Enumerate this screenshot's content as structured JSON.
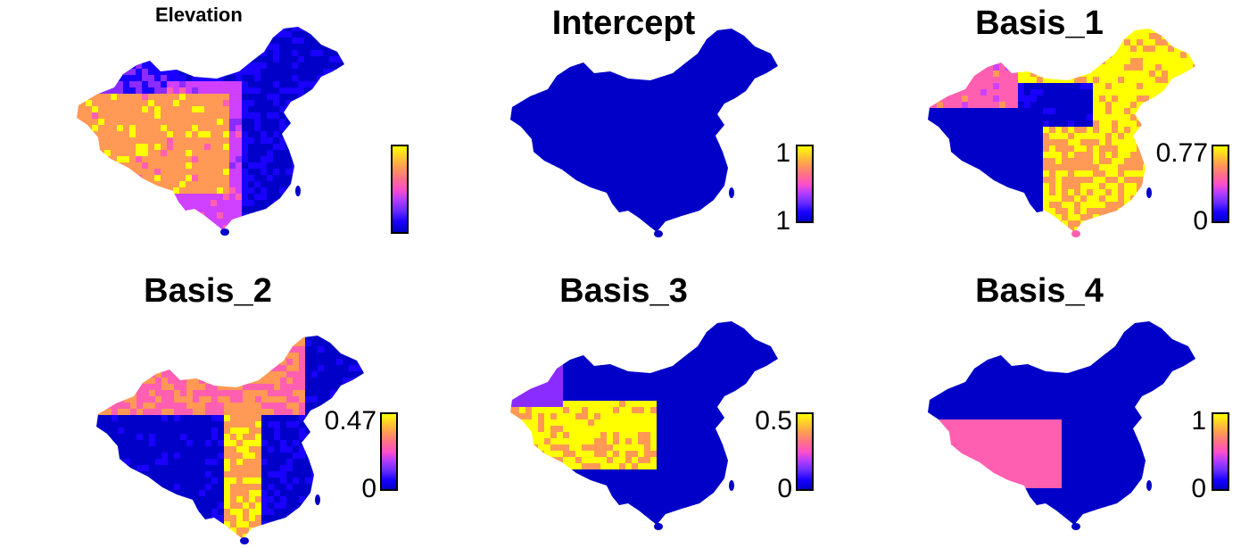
{
  "palette": {
    "low": "#0000c8",
    "blue": "#1a00ff",
    "purple": "#8a2cff",
    "magenta": "#d040ff",
    "pink": "#ff5fb0",
    "orange": "#ff9955",
    "yellow": "#ffff00"
  },
  "panels": [
    {
      "title": "Elevation",
      "legend": {
        "max": "",
        "min": ""
      },
      "pattern": "elevation"
    },
    {
      "title": "Intercept",
      "legend": {
        "max": "1",
        "min": "1"
      },
      "pattern": "uniform"
    },
    {
      "title": "Basis_1",
      "legend": {
        "max": "0.77",
        "min": "0"
      },
      "pattern": "basis1"
    },
    {
      "title": "Basis_2",
      "legend": {
        "max": "0.47",
        "min": "0"
      },
      "pattern": "basis2"
    },
    {
      "title": "Basis_3",
      "legend": {
        "max": "0.5",
        "min": "0"
      },
      "pattern": "basis3"
    },
    {
      "title": "Basis_4",
      "legend": {
        "max": "1",
        "min": "0"
      },
      "pattern": "basis4"
    }
  ]
}
